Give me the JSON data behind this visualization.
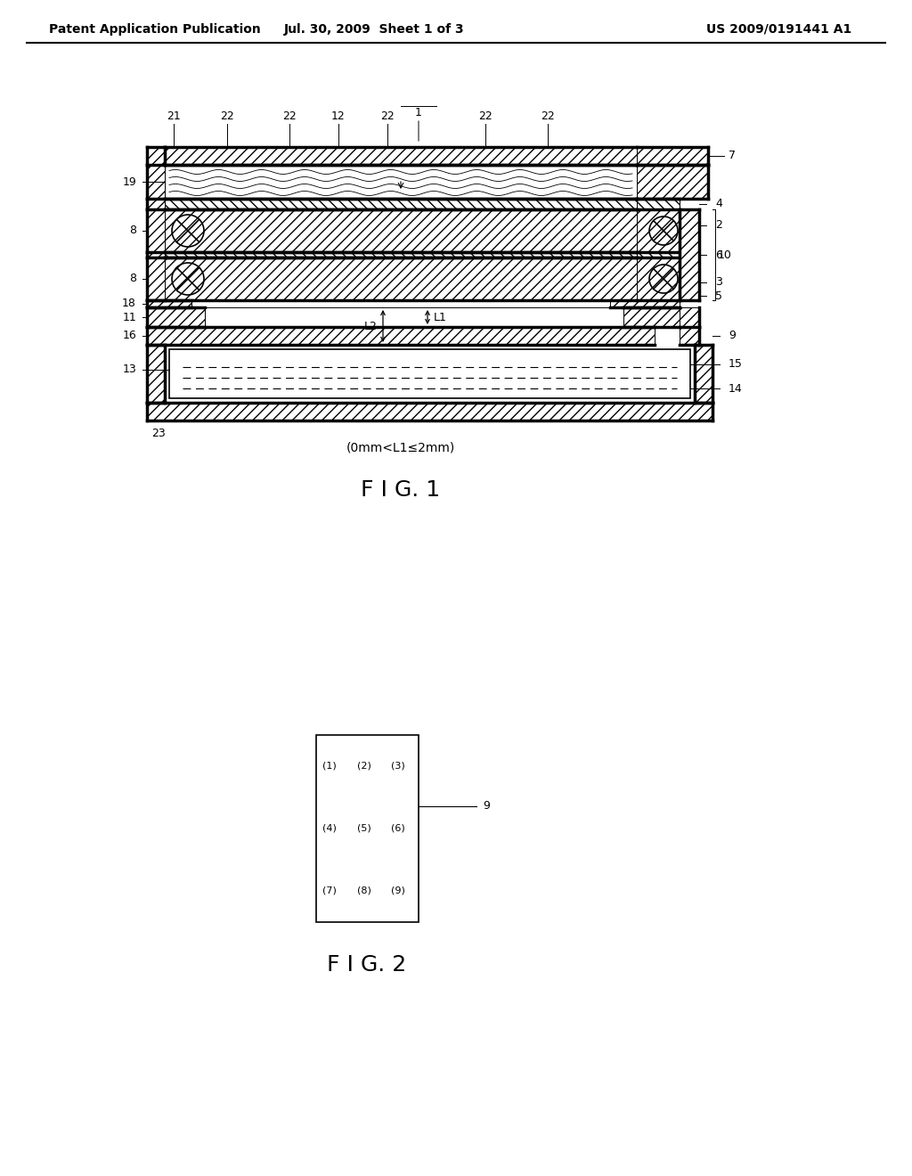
{
  "title_left": "Patent Application Publication",
  "title_mid": "Jul. 30, 2009  Sheet 1 of 3",
  "title_right": "US 2009/0191441 A1",
  "fig1_caption": "F I G. 1",
  "fig2_caption": "F I G. 2",
  "constraint_text": "(0mm<L1≤2mm)",
  "background_color": "#ffffff",
  "line_color": "#000000",
  "caption_fontsize": 18,
  "header_fontsize": 10
}
